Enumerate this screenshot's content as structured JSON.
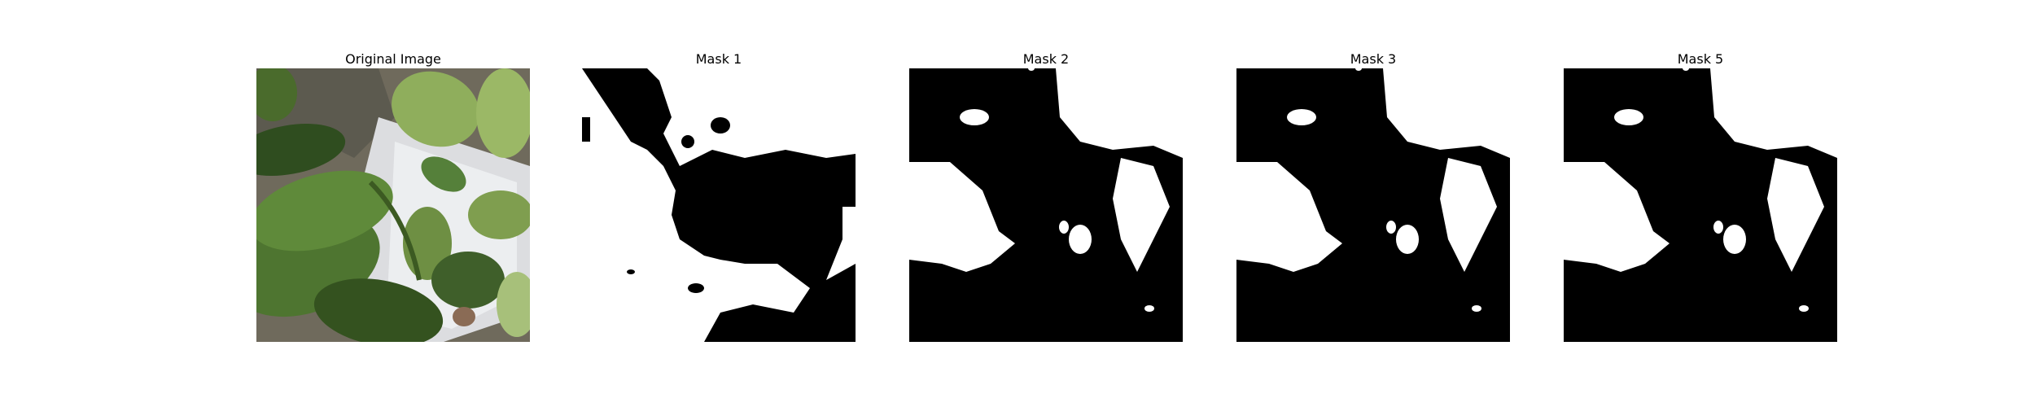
{
  "figure": {
    "panels": [
      {
        "title": "Original Image",
        "kind": "photo",
        "subject": "pepper-plant-leaves"
      },
      {
        "title": "Mask 1",
        "kind": "mask"
      },
      {
        "title": "Mask 2",
        "kind": "mask"
      },
      {
        "title": "Mask 3",
        "kind": "mask"
      },
      {
        "title": "Mask 5",
        "kind": "mask"
      }
    ],
    "colors": {
      "background": "#ffffff",
      "mask_fg": "#ffffff",
      "mask_bg": "#000000",
      "leaf_dark": "#3f5f2a",
      "leaf_light": "#8fae5c",
      "ground": "#6f6a5c",
      "container": "#dcdde0"
    }
  }
}
